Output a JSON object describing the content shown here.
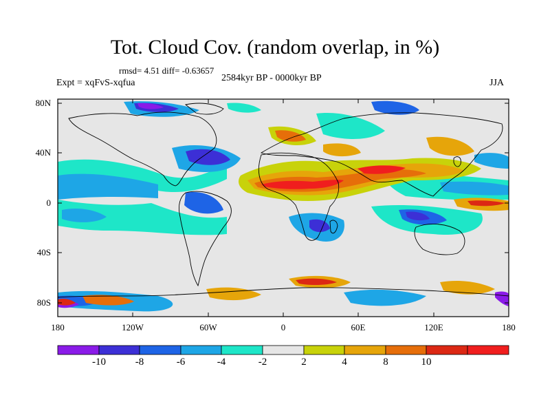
{
  "map": {
    "title": "Tot. Cloud Cov. (random overlap, in %)",
    "stats": "rmsd= 4.51 diff= -0.63657",
    "period": "2584kyr BP - 0000kyr BP",
    "experiment": "Expt = xqFvS-xqfua",
    "season": "JJA",
    "lat_labels": [
      "80N",
      "40N",
      "0",
      "40S",
      "80S"
    ],
    "lon_labels": [
      "180",
      "120W",
      "60W",
      "0",
      "60E",
      "120E",
      "180"
    ]
  },
  "colorbar": {
    "labels": [
      "-10",
      "-8",
      "-6",
      "-4",
      "-2",
      "2",
      "4",
      "8",
      "10"
    ],
    "colors": [
      "#8a1be8",
      "#3c2fd6",
      "#1e64e6",
      "#1ea6e6",
      "#1ee6c8",
      "#e6e6e6",
      "#c8d20a",
      "#e6a50a",
      "#e66e0a",
      "#dc2814",
      "#f01e1e"
    ]
  }
}
